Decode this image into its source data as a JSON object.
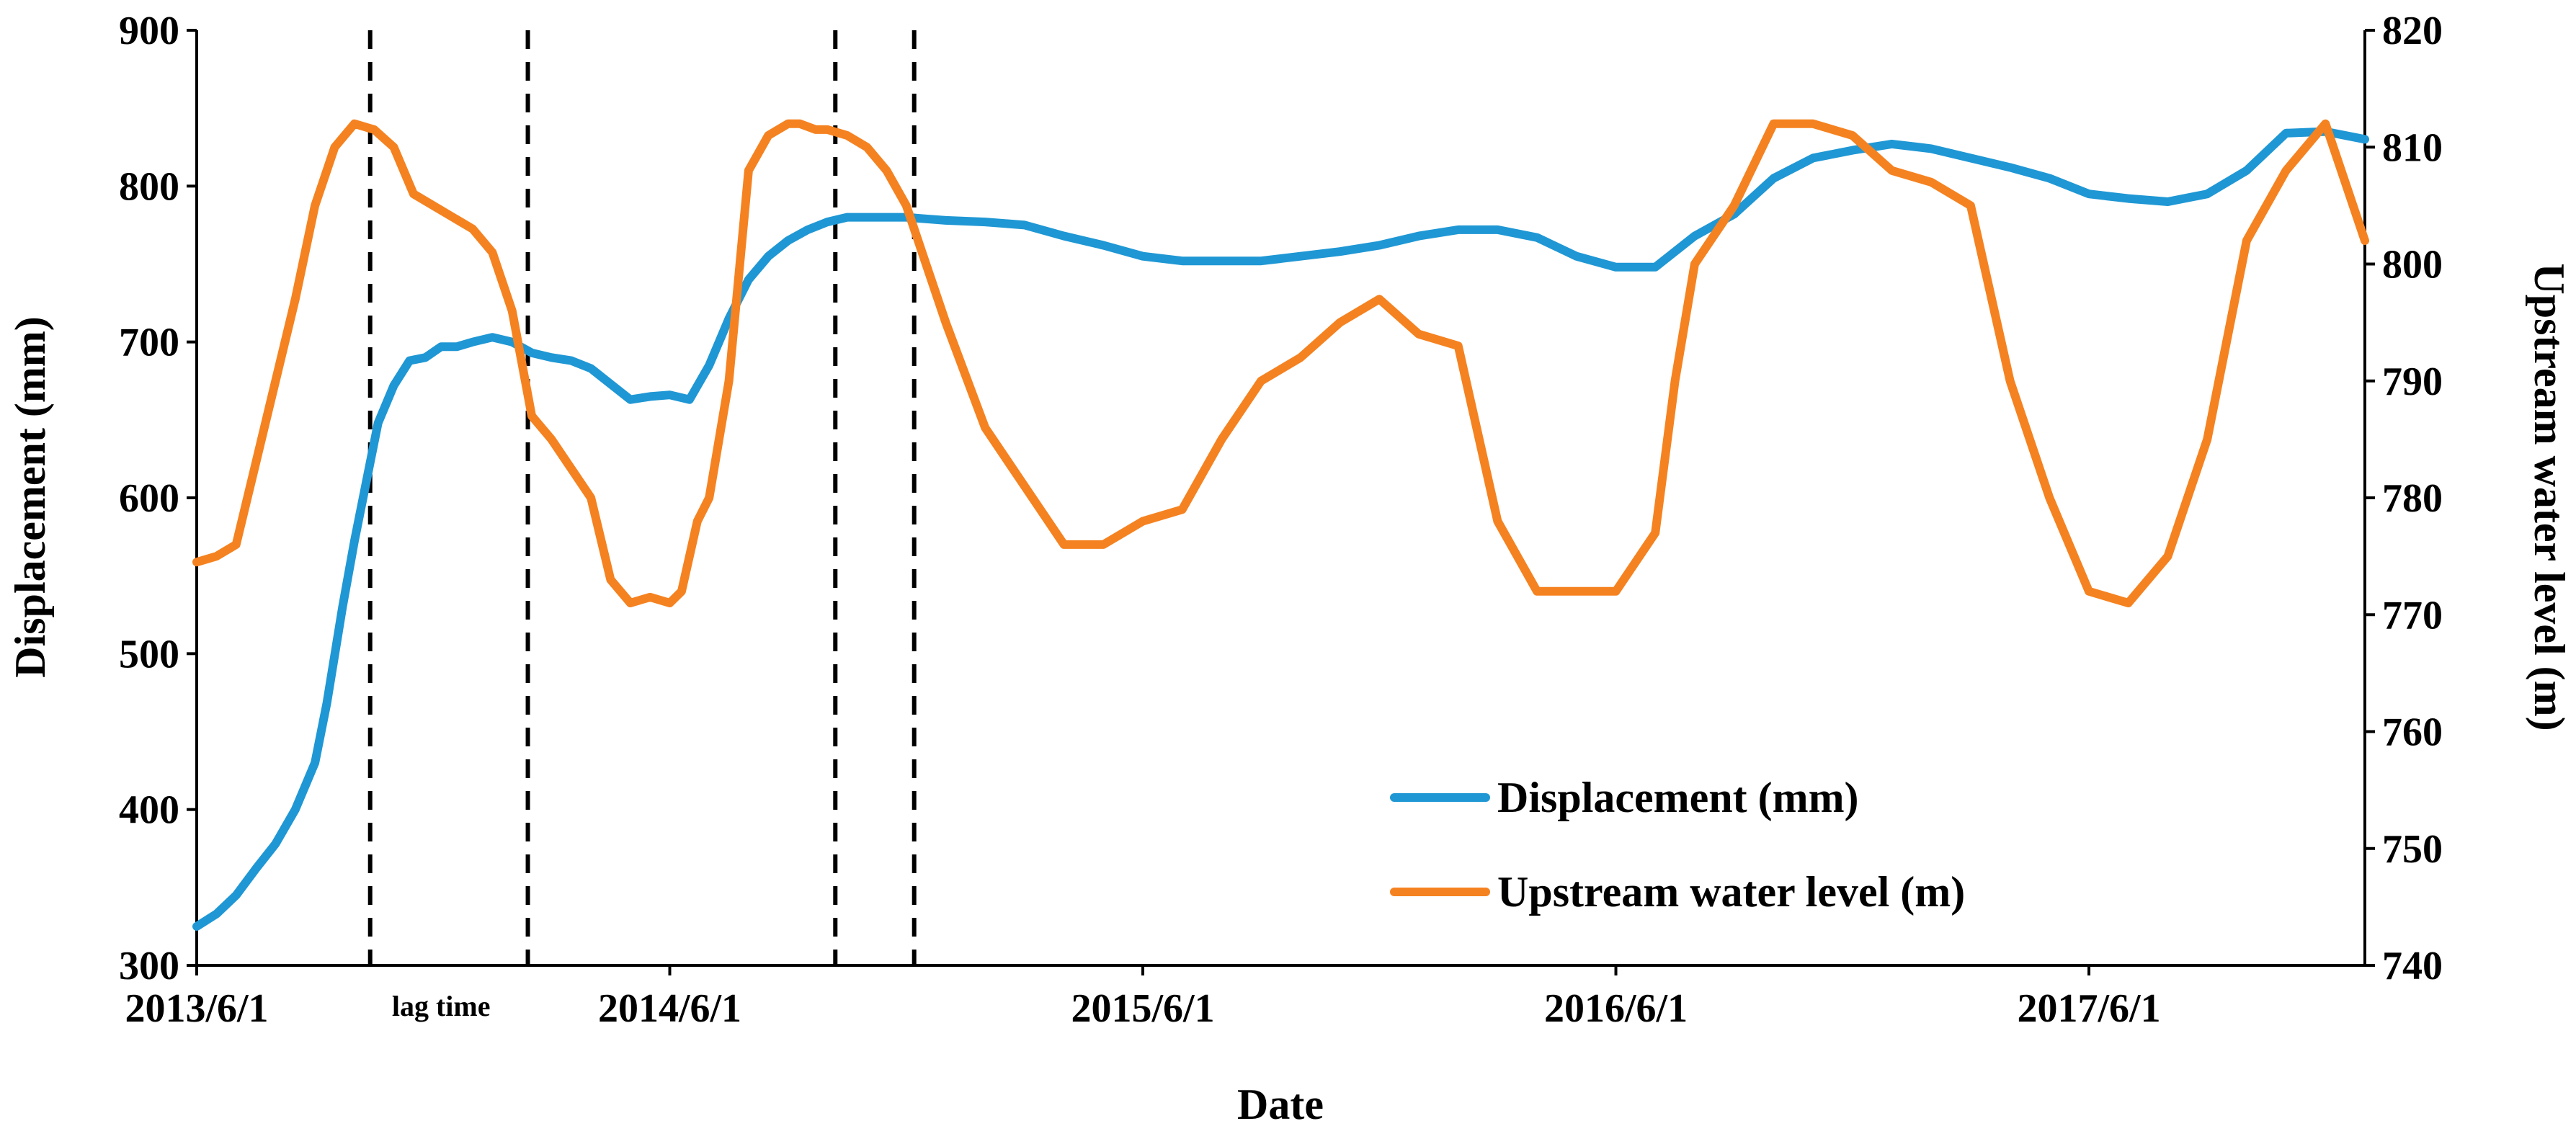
{
  "chart_data": {
    "type": "line",
    "title": "",
    "xlabel": "Date",
    "ylabel_left": "Displacement (mm)",
    "ylabel_right": "Upstream water level (m)",
    "x_unit": "months since 2013/6/1",
    "xlim": [
      0,
      55
    ],
    "ylim_left": [
      300,
      900
    ],
    "ylim_right": [
      740,
      820
    ],
    "x_ticks": [
      {
        "x": 0,
        "label": "2013/6/1"
      },
      {
        "x": 12,
        "label": "2014/6/1"
      },
      {
        "x": 24,
        "label": "2015/6/1"
      },
      {
        "x": 36,
        "label": "2016/6/1"
      },
      {
        "x": 48,
        "label": "2017/6/1"
      }
    ],
    "y_ticks_left": [
      "300",
      "400",
      "500",
      "600",
      "700",
      "800",
      "900"
    ],
    "y_ticks_right": [
      "740",
      "750",
      "760",
      "770",
      "780",
      "790",
      "800",
      "810",
      "820"
    ],
    "legend_position": "bottom-right",
    "colors": {
      "displacement": "#1f97d4",
      "water": "#f58220"
    },
    "annotations": [
      {
        "text": "lag time",
        "x": 6.2
      }
    ],
    "vlines": [
      4.4,
      8.4,
      16.2,
      18.2
    ],
    "series": [
      {
        "name": "Displacement (mm)",
        "axis": "left",
        "color": "#1f97d4",
        "x": [
          0,
          0.5,
          1,
          1.5,
          2,
          2.5,
          3,
          3.3,
          3.7,
          4,
          4.3,
          4.6,
          5,
          5.4,
          5.8,
          6.2,
          6.6,
          7,
          7.5,
          8,
          8.5,
          9,
          9.5,
          10,
          10.5,
          11,
          11.5,
          12,
          12.5,
          13,
          13.5,
          14,
          14.5,
          15,
          15.5,
          16,
          16.5,
          17,
          17.5,
          18,
          18.5,
          19,
          20,
          21,
          22,
          23,
          24,
          25,
          26,
          27,
          28,
          29,
          30,
          31,
          32,
          33,
          34,
          35,
          36,
          37,
          38,
          39,
          40,
          41,
          42,
          43,
          44,
          45,
          46,
          47,
          48,
          49,
          50,
          51,
          52,
          53,
          54,
          55
        ],
        "values": [
          325,
          333,
          345,
          362,
          378,
          400,
          430,
          468,
          530,
          572,
          610,
          648,
          672,
          688,
          690,
          697,
          697,
          700,
          703,
          700,
          693,
          690,
          688,
          683,
          673,
          663,
          665,
          666,
          663,
          685,
          715,
          740,
          755,
          765,
          772,
          777,
          780,
          780,
          780,
          780,
          779,
          778,
          777,
          775,
          768,
          762,
          755,
          752,
          752,
          752,
          755,
          758,
          762,
          768,
          772,
          772,
          767,
          755,
          748,
          748,
          768,
          782,
          805,
          818,
          823,
          827,
          824,
          818,
          812,
          805,
          795,
          792,
          790,
          795,
          810,
          834,
          835,
          830
        ]
      },
      {
        "name": "Upstream water level (m)",
        "axis": "right",
        "color": "#f58220",
        "x": [
          0,
          0.5,
          1,
          1.5,
          2,
          2.5,
          3,
          3.5,
          4,
          4.5,
          5,
          5.5,
          6,
          6.5,
          7,
          7.5,
          8,
          8.5,
          9,
          9.5,
          10,
          10.5,
          11,
          11.5,
          12,
          12.3,
          12.7,
          13,
          13.5,
          14,
          14.5,
          15,
          15.3,
          15.7,
          16,
          16.5,
          17,
          17.5,
          18,
          18.5,
          19,
          20,
          21,
          22,
          23,
          24,
          25,
          26,
          27,
          28,
          29,
          30,
          31,
          32,
          33,
          34,
          35,
          36,
          37,
          37.5,
          38,
          39,
          40,
          41,
          42,
          43,
          44,
          45,
          46,
          47,
          48,
          49,
          50,
          51,
          52,
          53,
          54,
          55
        ],
        "values": [
          774.5,
          775,
          776,
          783,
          790,
          797,
          805,
          810,
          812,
          811.5,
          810,
          806,
          805,
          804,
          803,
          801,
          796,
          787,
          785,
          782.5,
          780,
          773,
          771,
          771.5,
          771,
          772,
          778,
          780,
          790,
          808,
          811,
          812,
          812,
          811.5,
          811.5,
          811,
          810,
          808,
          805,
          800,
          795,
          786,
          781,
          776,
          776,
          778,
          779,
          785,
          790,
          792,
          795,
          797,
          794,
          793,
          778,
          772,
          772,
          772,
          777,
          790,
          800,
          805,
          812,
          812,
          811,
          808,
          807,
          805,
          790,
          780,
          772,
          771,
          775,
          785,
          802,
          808,
          812,
          802
        ]
      }
    ]
  }
}
